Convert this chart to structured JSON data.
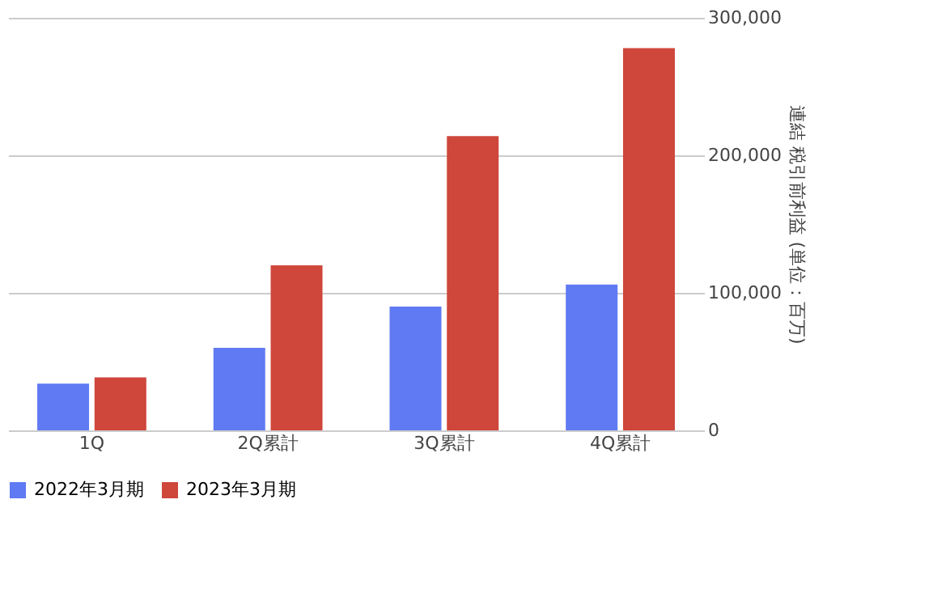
{
  "chart_data": {
    "type": "bar",
    "categories": [
      "1Q",
      "2Q累計",
      "3Q累計",
      "4Q累計"
    ],
    "series": [
      {
        "name": "2022年3月期",
        "color": "#5f7af2",
        "values": [
          34000,
          60000,
          90000,
          106000
        ]
      },
      {
        "name": "2023年3月期",
        "color": "#cf463b",
        "values": [
          38500,
          120000,
          214000,
          278000
        ]
      }
    ],
    "ylabel": "連結 税引前利益 (単位：百万)",
    "ylim": [
      0,
      300000
    ],
    "yticks": [
      {
        "value": 0,
        "label": "0"
      },
      {
        "value": 100000,
        "label": "100,000"
      },
      {
        "value": 200000,
        "label": "200,000"
      },
      {
        "value": 300000,
        "label": "300,000"
      }
    ],
    "grid": "y",
    "legend": "bottom"
  }
}
